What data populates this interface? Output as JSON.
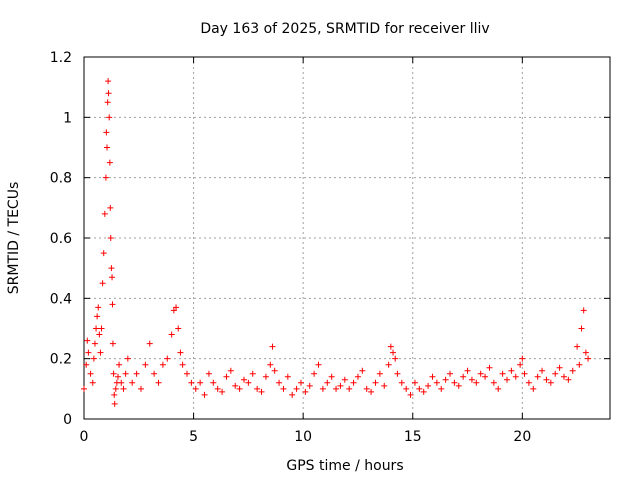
{
  "chart_data": {
    "type": "scatter",
    "title": "Day 163 of 2025, SRMTID for receiver lliv",
    "xlabel": "GPS time / hours",
    "ylabel": "SRMTID / TECUs",
    "xlim": [
      0,
      24
    ],
    "ylim": [
      0,
      1.2
    ],
    "x_ticks": [
      0,
      5,
      10,
      15,
      20
    ],
    "x_tick_labels": [
      "0",
      "5",
      "10",
      "15",
      "20"
    ],
    "y_ticks": [
      0,
      0.2,
      0.4,
      0.6,
      0.8,
      1.0,
      1.2
    ],
    "y_tick_labels": [
      "0",
      "0.2",
      "0.4",
      "0.6",
      "0.8",
      "1",
      "1.2"
    ],
    "grid": true,
    "marker": "+",
    "series": [
      {
        "name": "SRMTID",
        "color": "#ff0000",
        "x": [
          0.0,
          0.1,
          0.15,
          0.2,
          0.3,
          0.4,
          0.45,
          0.5,
          0.55,
          0.6,
          0.65,
          0.7,
          0.75,
          0.8,
          0.85,
          0.9,
          0.95,
          1.0,
          1.02,
          1.05,
          1.08,
          1.1,
          1.12,
          1.15,
          1.18,
          1.2,
          1.22,
          1.25,
          1.28,
          1.3,
          1.32,
          1.35,
          1.38,
          1.4,
          1.45,
          1.5,
          1.55,
          1.6,
          1.7,
          1.8,
          1.9,
          2.0,
          2.2,
          2.4,
          2.6,
          2.8,
          3.0,
          3.2,
          3.4,
          3.6,
          3.8,
          4.0,
          4.1,
          4.2,
          4.3,
          4.4,
          4.5,
          4.7,
          4.9,
          5.1,
          5.3,
          5.5,
          5.7,
          5.9,
          6.1,
          6.3,
          6.5,
          6.7,
          6.9,
          7.1,
          7.3,
          7.5,
          7.7,
          7.9,
          8.1,
          8.3,
          8.5,
          8.6,
          8.7,
          8.9,
          9.1,
          9.3,
          9.5,
          9.7,
          9.9,
          10.1,
          10.3,
          10.5,
          10.7,
          10.9,
          11.1,
          11.3,
          11.5,
          11.7,
          11.9,
          12.1,
          12.3,
          12.5,
          12.7,
          12.9,
          13.1,
          13.3,
          13.5,
          13.7,
          13.9,
          14.0,
          14.1,
          14.2,
          14.3,
          14.5,
          14.7,
          14.9,
          15.1,
          15.3,
          15.5,
          15.7,
          15.9,
          16.1,
          16.3,
          16.5,
          16.7,
          16.9,
          17.1,
          17.3,
          17.5,
          17.7,
          17.9,
          18.1,
          18.3,
          18.5,
          18.7,
          18.9,
          19.1,
          19.3,
          19.5,
          19.7,
          19.9,
          20.0,
          20.1,
          20.3,
          20.5,
          20.7,
          20.9,
          21.1,
          21.3,
          21.5,
          21.7,
          21.9,
          22.1,
          22.3,
          22.5,
          22.6,
          22.7,
          22.8,
          22.9,
          23.0
        ],
        "y": [
          0.1,
          0.18,
          0.26,
          0.22,
          0.15,
          0.12,
          0.2,
          0.25,
          0.3,
          0.34,
          0.37,
          0.28,
          0.22,
          0.3,
          0.45,
          0.55,
          0.68,
          0.8,
          0.95,
          0.9,
          1.05,
          1.12,
          1.08,
          1.0,
          0.85,
          0.7,
          0.6,
          0.5,
          0.47,
          0.38,
          0.25,
          0.15,
          0.08,
          0.05,
          0.1,
          0.12,
          0.14,
          0.18,
          0.12,
          0.1,
          0.15,
          0.2,
          0.12,
          0.15,
          0.1,
          0.18,
          0.25,
          0.15,
          0.12,
          0.18,
          0.2,
          0.28,
          0.36,
          0.37,
          0.3,
          0.22,
          0.18,
          0.15,
          0.12,
          0.1,
          0.12,
          0.08,
          0.15,
          0.12,
          0.1,
          0.09,
          0.14,
          0.16,
          0.11,
          0.1,
          0.13,
          0.12,
          0.15,
          0.1,
          0.09,
          0.14,
          0.18,
          0.24,
          0.16,
          0.12,
          0.1,
          0.14,
          0.08,
          0.1,
          0.12,
          0.09,
          0.11,
          0.15,
          0.18,
          0.1,
          0.12,
          0.14,
          0.1,
          0.11,
          0.13,
          0.1,
          0.12,
          0.14,
          0.16,
          0.1,
          0.09,
          0.12,
          0.15,
          0.11,
          0.18,
          0.24,
          0.22,
          0.2,
          0.15,
          0.12,
          0.1,
          0.08,
          0.12,
          0.1,
          0.09,
          0.11,
          0.14,
          0.12,
          0.1,
          0.13,
          0.15,
          0.12,
          0.11,
          0.14,
          0.16,
          0.13,
          0.12,
          0.15,
          0.14,
          0.17,
          0.12,
          0.1,
          0.15,
          0.13,
          0.16,
          0.14,
          0.18,
          0.2,
          0.15,
          0.12,
          0.1,
          0.14,
          0.16,
          0.13,
          0.12,
          0.15,
          0.17,
          0.14,
          0.13,
          0.16,
          0.24,
          0.18,
          0.3,
          0.36,
          0.22,
          0.2
        ]
      }
    ]
  }
}
